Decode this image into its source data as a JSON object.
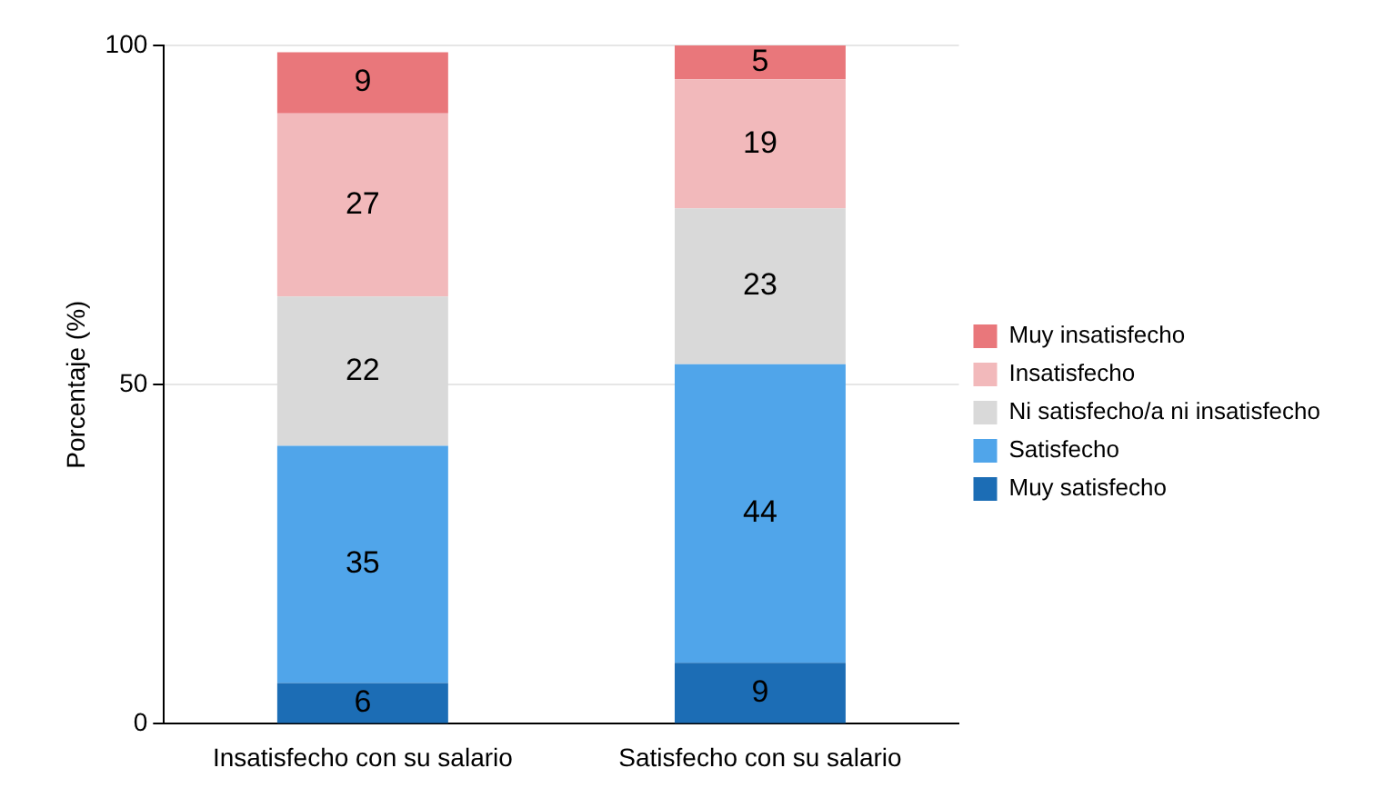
{
  "chart_data": {
    "type": "bar",
    "stacked": true,
    "ylabel": "Porcentaje (%)",
    "categories": [
      "Insatisfecho con su salario",
      "Satisfecho con su salario"
    ],
    "series": [
      {
        "name": "Muy satisfecho",
        "color": "#1c6db5",
        "values": [
          6,
          9
        ]
      },
      {
        "name": "Satisfecho",
        "color": "#50a5ea",
        "values": [
          35,
          44
        ]
      },
      {
        "name": "Ni satisfecho/a ni insatisfecho",
        "color": "#d9d9d9",
        "values": [
          22,
          23
        ]
      },
      {
        "name": "Insatisfecho",
        "color": "#f2b9bb",
        "values": [
          27,
          19
        ]
      },
      {
        "name": "Muy insatisfecho",
        "color": "#e9777b",
        "values": [
          9,
          5
        ]
      }
    ],
    "ylim": [
      0,
      100
    ],
    "yticks": [
      0,
      50,
      100
    ],
    "grid": "y",
    "legend": "right",
    "data_labels": true
  }
}
